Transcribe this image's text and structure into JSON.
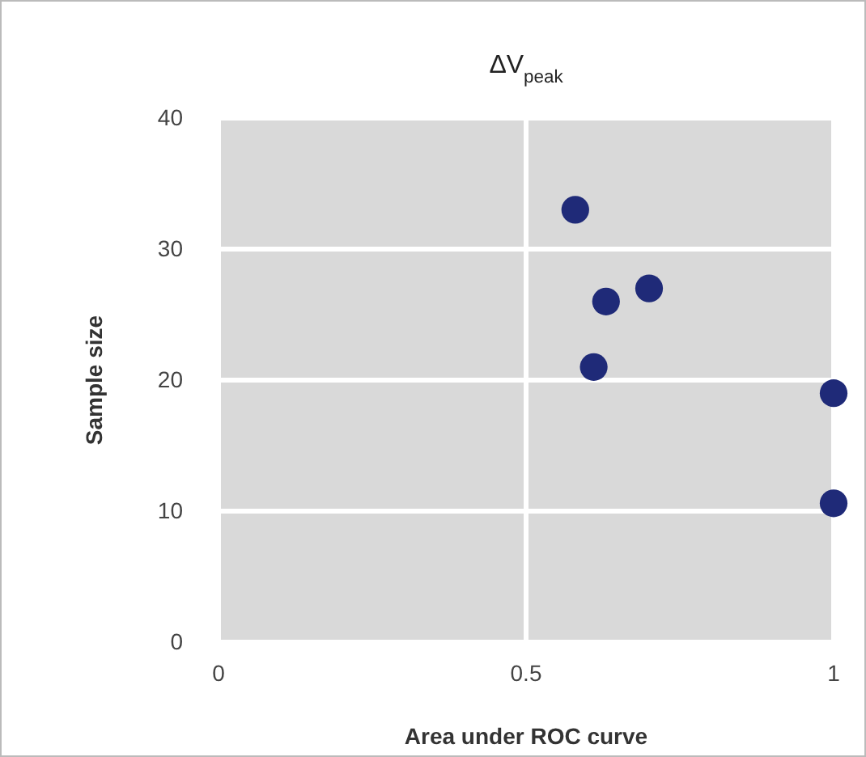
{
  "chart_data": {
    "type": "scatter",
    "title": "ΔV$_{peak}$",
    "xlabel": "Area under ROC curve",
    "ylabel": "Sample size",
    "x": [
      0.58,
      0.63,
      0.7,
      0.61,
      1.0,
      1.0
    ],
    "series": [
      {
        "color": "#1f2a78",
        "values": [
          33,
          26,
          27,
          21,
          19,
          10.6
        ]
      }
    ],
    "xlim": [
      0,
      1
    ],
    "xticks": [
      0,
      0.5,
      1
    ],
    "ylim": [
      0,
      40
    ],
    "yticks": [
      0,
      10,
      20,
      30,
      40
    ],
    "grid": true,
    "marker": "circle"
  }
}
